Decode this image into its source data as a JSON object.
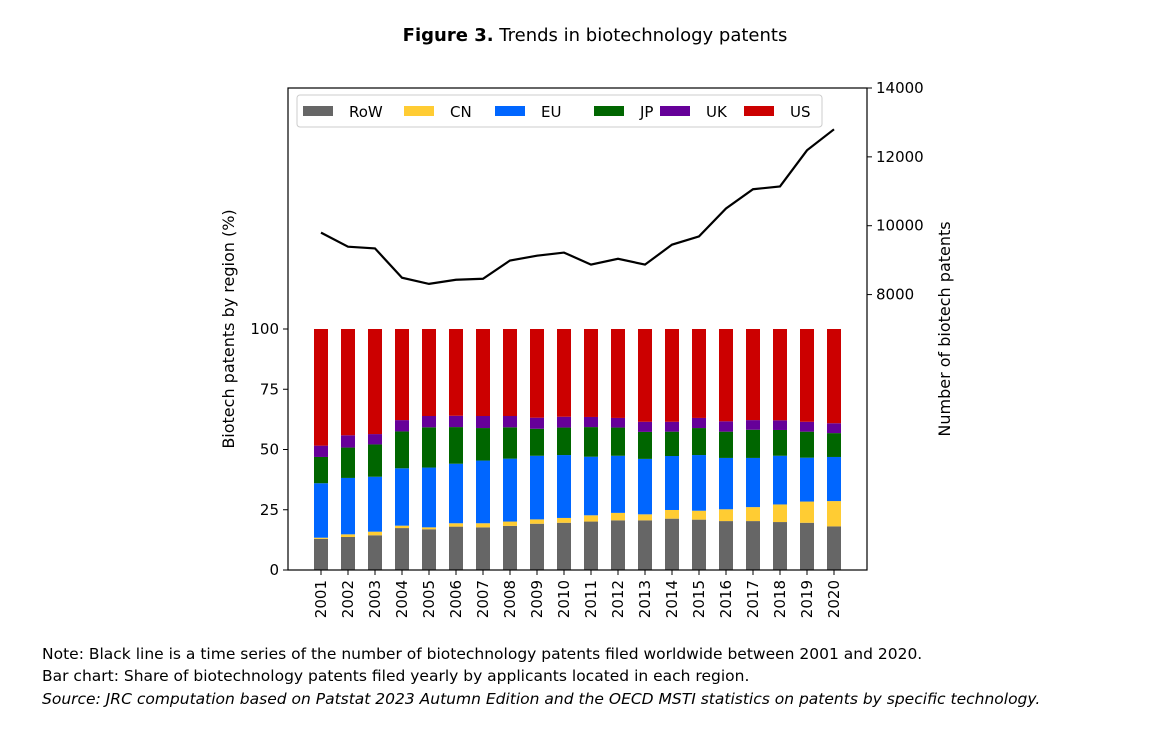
{
  "title": {
    "bold": "Figure 3.",
    "text": " Trends in biotechnology patents"
  },
  "chart_data": {
    "type": "bar",
    "stacked": true,
    "categories": [
      "2001",
      "2002",
      "2003",
      "2004",
      "2005",
      "2006",
      "2007",
      "2008",
      "2009",
      "2010",
      "2011",
      "2012",
      "2013",
      "2014",
      "2015",
      "2016",
      "2017",
      "2018",
      "2019",
      "2020"
    ],
    "series": [
      {
        "name": "RoW",
        "color": "#666666",
        "values": [
          12.9,
          13.7,
          14.4,
          17.4,
          16.9,
          18.0,
          17.7,
          18.3,
          19.2,
          19.6,
          20.1,
          20.6,
          20.6,
          21.3,
          20.9,
          20.3,
          20.3,
          19.9,
          19.6,
          18.1
        ]
      },
      {
        "name": "CN",
        "color": "#FFCC33",
        "values": [
          0.5,
          1.1,
          1.5,
          1.0,
          0.8,
          1.4,
          1.7,
          1.8,
          1.8,
          2.0,
          2.6,
          3.1,
          2.5,
          3.6,
          3.7,
          4.9,
          5.8,
          7.3,
          8.8,
          10.5
        ]
      },
      {
        "name": "EU",
        "color": "#0066FF",
        "values": [
          22.6,
          23.4,
          22.8,
          23.8,
          24.8,
          24.7,
          26.0,
          26.1,
          26.4,
          26.1,
          24.3,
          23.7,
          23.0,
          22.4,
          23.1,
          21.3,
          20.4,
          20.2,
          18.2,
          18.3
        ]
      },
      {
        "name": "JP",
        "color": "#006600",
        "values": [
          10.9,
          12.6,
          13.4,
          15.3,
          16.7,
          15.2,
          13.5,
          13.0,
          11.2,
          11.4,
          12.3,
          11.7,
          11.2,
          10.1,
          11.2,
          10.9,
          11.7,
          10.7,
          10.8,
          9.9
        ]
      },
      {
        "name": "UK",
        "color": "#660099",
        "values": [
          4.7,
          5.1,
          4.3,
          4.7,
          4.7,
          4.7,
          5.0,
          4.7,
          4.6,
          4.5,
          4.2,
          4.0,
          4.2,
          4.1,
          4.2,
          4.3,
          4.0,
          4.0,
          4.1,
          4.1
        ]
      },
      {
        "name": "US",
        "color": "#CC0000",
        "values": [
          48.4,
          44.1,
          43.6,
          37.8,
          36.1,
          36.0,
          36.1,
          36.1,
          36.8,
          36.4,
          36.5,
          36.9,
          38.5,
          38.5,
          36.9,
          38.3,
          37.8,
          37.9,
          38.5,
          39.1
        ]
      }
    ],
    "line": {
      "name": "Number of biotech patents",
      "color": "#000000",
      "values": [
        9800,
        9390,
        9340,
        8490,
        8310,
        8430,
        8460,
        8990,
        9130,
        9220,
        8870,
        9040,
        8870,
        9450,
        9690,
        10500,
        11060,
        11140,
        12190,
        12800
      ]
    },
    "ylabel": "Biotech patents by region (%)",
    "ylabel_right": "Number of biotech patents",
    "ylim": [
      0,
      200
    ],
    "yticks": [
      "0",
      "25",
      "50",
      "75",
      "100"
    ],
    "ylim_right": [
      0,
      14000
    ],
    "yticks_right": [
      "8000",
      "10000",
      "12000",
      "14000"
    ],
    "legend_position": "top"
  },
  "notes": {
    "line1": "Note: Black line is a time series of the number of biotechnology patents filed worldwide between 2001 and 2020.",
    "line2": "Bar chart: Share of biotechnology patents filed yearly by applicants located in each region.",
    "source": "Source: JRC computation based on Patstat 2023 Autumn Edition and the OECD MSTI statistics on patents by specific technology."
  }
}
